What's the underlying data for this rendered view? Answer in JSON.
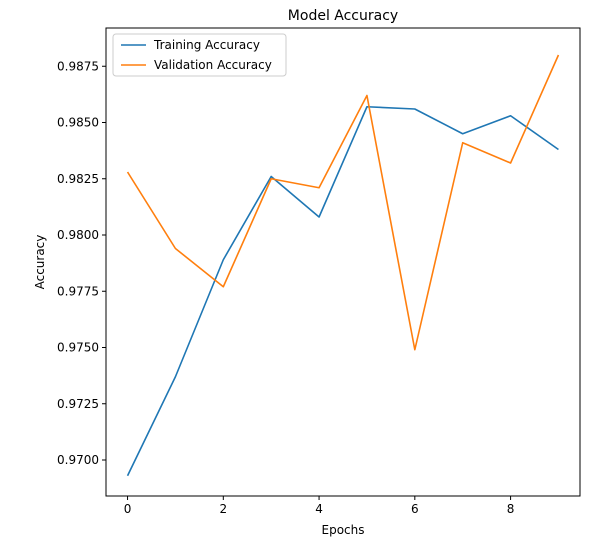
{
  "chart_data": {
    "type": "line",
    "title": "Model Accuracy",
    "xlabel": "Epochs",
    "ylabel": "Accuracy",
    "x": [
      0,
      1,
      2,
      3,
      4,
      5,
      6,
      7,
      8,
      9
    ],
    "xlim": [
      -0.45,
      9.45
    ],
    "ylim": [
      0.9684,
      0.9892
    ],
    "xticks": [
      0,
      2,
      4,
      6,
      8
    ],
    "yticks": [
      0.97,
      0.9725,
      0.975,
      0.9775,
      0.98,
      0.9825,
      0.985,
      0.9875
    ],
    "xtick_labels": [
      "0",
      "2",
      "4",
      "6",
      "8"
    ],
    "ytick_labels": [
      "0.9700",
      "0.9725",
      "0.9750",
      "0.9775",
      "0.9800",
      "0.9825",
      "0.9850",
      "0.9875"
    ],
    "grid": false,
    "legend_position": "top-left",
    "series": [
      {
        "name": "Training Accuracy",
        "color": "#1f77b4",
        "values": [
          0.9693,
          0.9737,
          0.9789,
          0.9826,
          0.9808,
          0.9857,
          0.9856,
          0.9845,
          0.9853,
          0.9838
        ]
      },
      {
        "name": "Validation Accuracy",
        "color": "#ff7f0e",
        "values": [
          0.9828,
          0.9794,
          0.9777,
          0.9825,
          0.9821,
          0.9862,
          0.9749,
          0.9841,
          0.9832,
          0.988
        ]
      }
    ]
  }
}
